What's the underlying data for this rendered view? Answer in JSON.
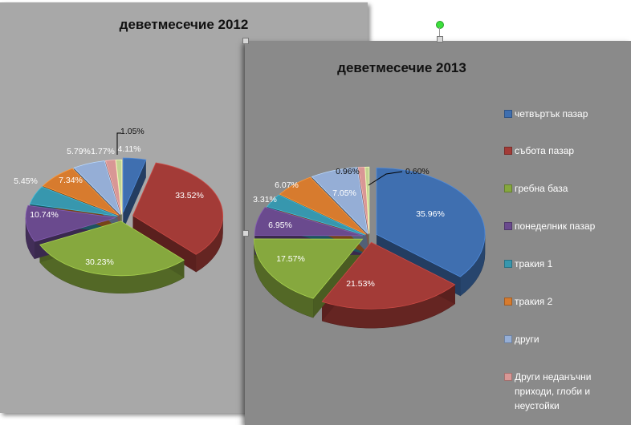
{
  "chart_data": [
    {
      "type": "pie",
      "title": "деветмесечие 2012",
      "slices": [
        {
          "label": "четвъртък пазар",
          "value": 4.11,
          "text": "4.11%",
          "color": "#3f6fb0"
        },
        {
          "label": "събота пазар",
          "value": 33.52,
          "text": "33.52%",
          "color": "#a33b37"
        },
        {
          "label": "гребна база",
          "value": 30.23,
          "text": "30.23%",
          "color": "#86a83e"
        },
        {
          "label": "понеделник пазар",
          "value": 10.74,
          "text": "10.74%",
          "color": "#6a4a8e"
        },
        {
          "label": "тракия 1",
          "value": 5.45,
          "text": "5.45%",
          "color": "#3797ae"
        },
        {
          "label": "тракия 2",
          "value": 7.34,
          "text": "7.34%",
          "color": "#d77b2e"
        },
        {
          "label": "други",
          "value": 5.79,
          "text": "5.79%",
          "color": "#95aed6"
        },
        {
          "label": "Други неданъчни приходи, глоби и неустойки",
          "value": 1.77,
          "text": "1.77%",
          "color": "#d89795"
        },
        {
          "label": "",
          "value": 1.05,
          "text": "1.05%",
          "color": "#c2d392"
        }
      ]
    },
    {
      "type": "pie",
      "title": "деветмесечие 2013",
      "slices": [
        {
          "label": "четвъртък пазар",
          "value": 35.96,
          "text": "35.96%",
          "color": "#3f6fb0"
        },
        {
          "label": "събота пазар",
          "value": 21.53,
          "text": "21.53%",
          "color": "#a33b37"
        },
        {
          "label": "гребна база",
          "value": 17.57,
          "text": "17.57%",
          "color": "#86a83e"
        },
        {
          "label": "понеделник пазар",
          "value": 6.95,
          "text": "6.95%",
          "color": "#6a4a8e"
        },
        {
          "label": "тракия 1",
          "value": 3.31,
          "text": "3.31%",
          "color": "#3797ae"
        },
        {
          "label": "тракия 2",
          "value": 6.07,
          "text": "6.07%",
          "color": "#d77b2e"
        },
        {
          "label": "други",
          "value": 7.05,
          "text": "7.05%",
          "color": "#95aed6"
        },
        {
          "label": "Други неданъчни приходи, глоби и неустойки",
          "value": 0.96,
          "text": "0.96%",
          "color": "#d89795"
        },
        {
          "label": "",
          "value": 0.6,
          "text": "0.60%",
          "color": "#c2d392"
        }
      ],
      "legend": [
        {
          "label": "четвъртък пазар",
          "color": "#3f6fb0"
        },
        {
          "label": "събота пазар",
          "color": "#a33b37"
        },
        {
          "label": "гребна база",
          "color": "#86a83e"
        },
        {
          "label": "понеделник пазар",
          "color": "#6a4a8e"
        },
        {
          "label": "тракия 1",
          "color": "#3797ae"
        },
        {
          "label": "тракия 2",
          "color": "#d77b2e"
        },
        {
          "label": "други",
          "color": "#95aed6"
        },
        {
          "label": "Други неданъчни приходи, глоби и неустойки",
          "color": "#d89795"
        }
      ]
    }
  ]
}
